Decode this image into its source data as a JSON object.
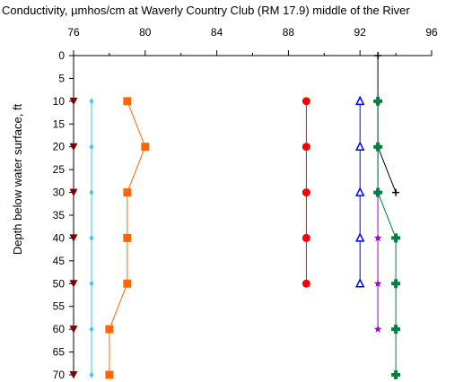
{
  "chart_data": {
    "type": "scatter",
    "title": "Conductivity, µmhos/cm at Waverly Country Club (RM 17.9) middle of the River",
    "xlabel": "",
    "ylabel": "Depth below water surface, ft",
    "xlim": [
      76,
      96
    ],
    "ylim": [
      0,
      70
    ],
    "y_inverted": true,
    "x_axis_position": "top",
    "grid": false,
    "xticks": [
      76,
      80,
      84,
      88,
      92,
      96
    ],
    "xtick_labels": [
      "76",
      "80",
      "84",
      "88",
      "92",
      "96"
    ],
    "yticks": [
      0,
      5,
      10,
      15,
      20,
      25,
      30,
      35,
      40,
      45,
      50,
      55,
      60,
      65,
      70
    ],
    "ytick_labels": [
      "0",
      "5",
      "10",
      "15",
      "20",
      "25",
      "30",
      "35",
      "40",
      "45",
      "50",
      "55",
      "60",
      "65",
      "70"
    ],
    "series": [
      {
        "color": "#800000",
        "marker": "triangle-down",
        "connected": false,
        "points": [
          [
            76,
            10
          ],
          [
            76,
            20
          ],
          [
            76,
            30
          ],
          [
            76,
            40
          ],
          [
            76,
            50
          ],
          [
            76,
            60
          ],
          [
            76,
            70
          ]
        ]
      },
      {
        "color": "#33ccff",
        "marker": "diamond",
        "connected": true,
        "points": [
          [
            77,
            10
          ],
          [
            77,
            20
          ],
          [
            77,
            30
          ],
          [
            77,
            40
          ],
          [
            77,
            50
          ],
          [
            77,
            60
          ],
          [
            77,
            70
          ]
        ]
      },
      {
        "color": "#ff6600",
        "marker": "square",
        "connected": true,
        "points": [
          [
            79,
            10
          ],
          [
            80,
            20
          ],
          [
            79,
            30
          ],
          [
            79,
            40
          ],
          [
            79,
            50
          ],
          [
            78,
            60
          ],
          [
            78,
            70
          ]
        ]
      },
      {
        "color": "#ff0000",
        "marker": "circle",
        "connected": true,
        "points": [
          [
            89,
            10
          ],
          [
            89,
            20
          ],
          [
            89,
            30
          ],
          [
            89,
            40
          ],
          [
            89,
            50
          ]
        ]
      },
      {
        "color": "#0000ff",
        "marker": "triangle-open",
        "connected": true,
        "points": [
          [
            92,
            10
          ],
          [
            92,
            20
          ],
          [
            92,
            30
          ],
          [
            92,
            40
          ],
          [
            92,
            50
          ]
        ]
      },
      {
        "color": "#000000",
        "marker": "plus",
        "connected": true,
        "points": [
          [
            93,
            0
          ],
          [
            93,
            10
          ],
          [
            93,
            20
          ],
          [
            94,
            30
          ]
        ]
      },
      {
        "color": "#9900cc",
        "marker": "star",
        "connected": true,
        "points": [
          [
            93,
            10
          ],
          [
            93,
            20
          ],
          [
            93,
            30
          ],
          [
            93,
            40
          ],
          [
            93,
            50
          ],
          [
            93,
            60
          ]
        ]
      },
      {
        "color": "#008040",
        "marker": "cross",
        "connected": true,
        "points": [
          [
            93,
            10
          ],
          [
            93,
            20
          ],
          [
            93,
            30
          ],
          [
            94,
            40
          ],
          [
            94,
            50
          ],
          [
            94,
            60
          ],
          [
            94,
            70
          ]
        ]
      }
    ]
  }
}
